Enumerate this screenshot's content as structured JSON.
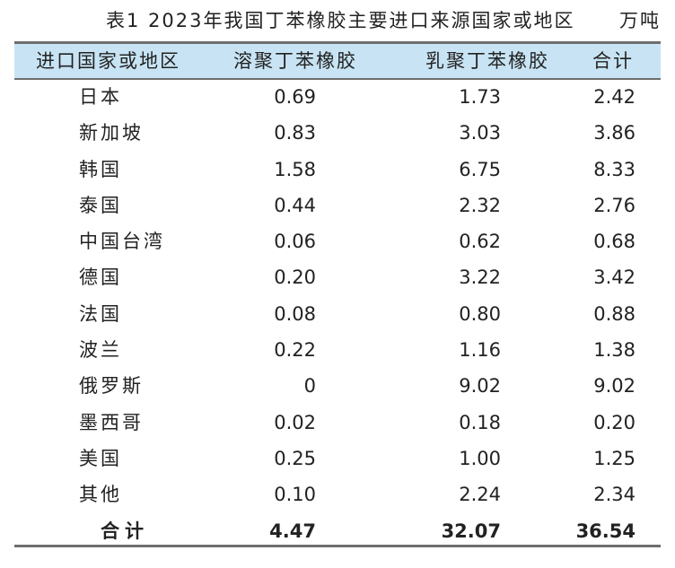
{
  "table": {
    "caption": "表1  2023年我国丁苯橡胶主要进口来源国家或地区",
    "unit": "万吨",
    "headers": [
      "进口国家或地区",
      "溶聚丁苯橡胶",
      "乳聚丁苯橡胶",
      "合计"
    ],
    "rows": [
      {
        "region": "日本",
        "solution": "0.69",
        "emulsion": "1.73",
        "total": "2.42"
      },
      {
        "region": "新加坡",
        "solution": "0.83",
        "emulsion": "3.03",
        "total": "3.86"
      },
      {
        "region": "韩国",
        "solution": "1.58",
        "emulsion": "6.75",
        "total": "8.33"
      },
      {
        "region": "泰国",
        "solution": "0.44",
        "emulsion": "2.32",
        "total": "2.76"
      },
      {
        "region": "中国台湾",
        "solution": "0.06",
        "emulsion": "0.62",
        "total": "0.68"
      },
      {
        "region": "德国",
        "solution": "0.20",
        "emulsion": "3.22",
        "total": "3.42"
      },
      {
        "region": "法国",
        "solution": "0.08",
        "emulsion": "0.80",
        "total": "0.88"
      },
      {
        "region": "波兰",
        "solution": "0.22",
        "emulsion": "1.16",
        "total": "1.38"
      },
      {
        "region": "俄罗斯",
        "solution": "0",
        "emulsion": "9.02",
        "total": "9.02"
      },
      {
        "region": "墨西哥",
        "solution": "0.02",
        "emulsion": "0.18",
        "total": "0.20"
      },
      {
        "region": "美国",
        "solution": "0.25",
        "emulsion": "1.00",
        "total": "1.25"
      },
      {
        "region": "其他",
        "solution": "0.10",
        "emulsion": "2.24",
        "total": "2.34"
      }
    ],
    "total_row": {
      "region": "合计",
      "solution": "4.47",
      "emulsion": "32.07",
      "total": "36.54"
    }
  },
  "colors": {
    "header_background": "#c8e4f4",
    "rule": "#6e6e6e",
    "text": "#222222"
  }
}
